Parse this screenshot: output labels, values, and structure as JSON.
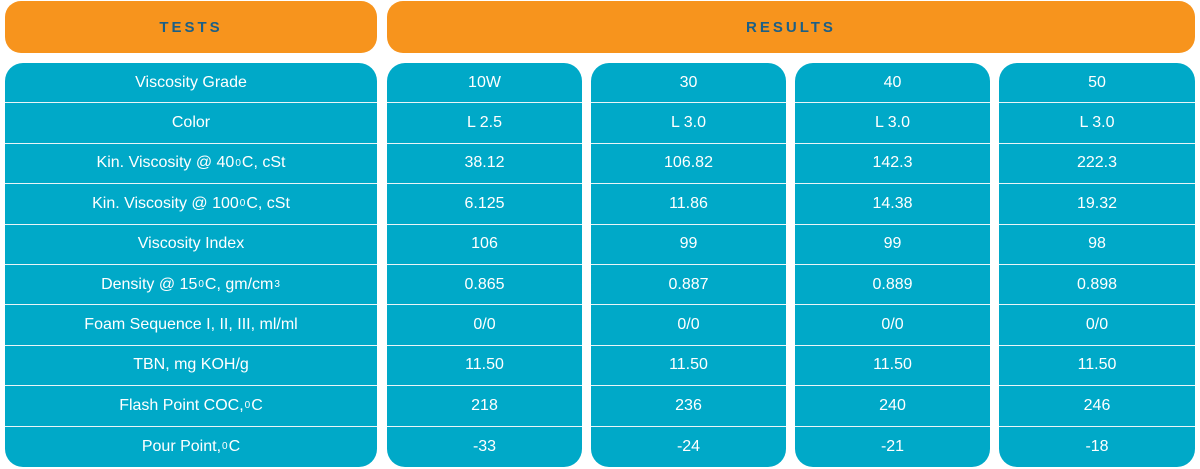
{
  "headers": {
    "tests": "TESTS",
    "results": "RESULTS"
  },
  "rows": [
    {
      "test": [
        "Viscosity Grade"
      ],
      "values": [
        "10W",
        "30",
        "40",
        "50"
      ]
    },
    {
      "test": [
        "Color"
      ],
      "values": [
        "L 2.5",
        "L 3.0",
        "L 3.0",
        "L 3.0"
      ]
    },
    {
      "test": [
        "Kin. Viscosity @ 40 ",
        "0",
        "C, cSt"
      ],
      "values": [
        "38.12",
        "106.82",
        "142.3",
        "222.3"
      ]
    },
    {
      "test": [
        "Kin. Viscosity @ 100 ",
        "0",
        "C, cSt"
      ],
      "values": [
        "6.125",
        "11.86",
        "14.38",
        "19.32"
      ]
    },
    {
      "test": [
        "Viscosity Index"
      ],
      "values": [
        "106",
        "99",
        "99",
        "98"
      ]
    },
    {
      "test": [
        "Density @ 15 ",
        "0",
        "C, gm/cm",
        "3"
      ],
      "values": [
        "0.865",
        "0.887",
        "0.889",
        "0.898"
      ]
    },
    {
      "test": [
        "Foam Sequence I, II, III, ml/ml"
      ],
      "values": [
        "0/0",
        "0/0",
        "0/0",
        "0/0"
      ]
    },
    {
      "test": [
        "TBN, mg KOH/g"
      ],
      "values": [
        "11.50",
        "11.50",
        "11.50",
        "11.50"
      ]
    },
    {
      "test": [
        "Flash Point COC, ",
        "0",
        "C"
      ],
      "values": [
        "218",
        "236",
        "240",
        "246"
      ]
    },
    {
      "test": [
        "Pour Point,",
        "0",
        "C"
      ],
      "values": [
        "-33",
        "-24",
        "-21",
        "-18"
      ]
    }
  ],
  "colors": {
    "header_bg": "#f7941d",
    "header_text": "#1b5f86",
    "cell_bg": "#00a9c8",
    "cell_text": "#ffffff"
  }
}
